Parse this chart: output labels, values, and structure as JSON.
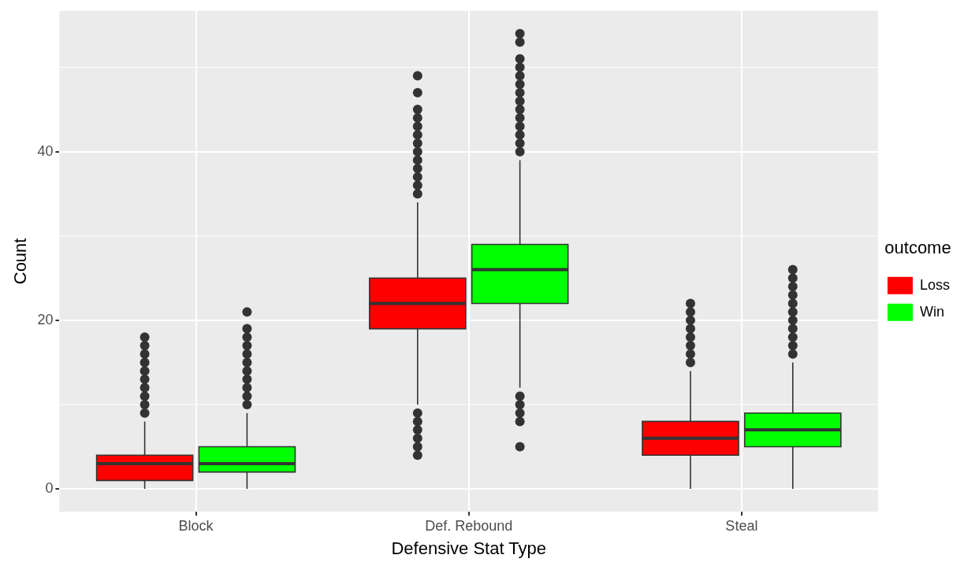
{
  "chart_data": {
    "type": "box",
    "xlabel": "Defensive Stat Type",
    "ylabel": "Count",
    "legend_title": "outcome",
    "legend": "right",
    "grid": true,
    "categories": [
      "Block",
      "Def. Rebound",
      "Steal"
    ],
    "ylim": [
      -2.7,
      56.7
    ],
    "yticks": [
      0,
      20,
      40
    ],
    "series": [
      {
        "name": "Loss",
        "color": "#ff0000",
        "boxes": [
          {
            "low": 0,
            "q1": 1,
            "median": 3,
            "q3": 4,
            "high": 8,
            "outliers": [
              9,
              10,
              11,
              12,
              13,
              14,
              15,
              16,
              17,
              18
            ]
          },
          {
            "low": 10,
            "q1": 19,
            "median": 22,
            "q3": 25,
            "high": 34,
            "outliers": [
              4,
              5,
              6,
              7,
              8,
              9,
              35,
              36,
              37,
              38,
              39,
              40,
              41,
              42,
              43,
              44,
              45,
              47,
              49
            ]
          },
          {
            "low": 0,
            "q1": 4,
            "median": 6,
            "q3": 8,
            "high": 14,
            "outliers": [
              15,
              16,
              17,
              18,
              19,
              20,
              21,
              22
            ]
          }
        ]
      },
      {
        "name": "Win",
        "color": "#00ff00",
        "boxes": [
          {
            "low": 0,
            "q1": 2,
            "median": 3,
            "q3": 5,
            "high": 9,
            "outliers": [
              10,
              11,
              12,
              13,
              14,
              15,
              16,
              17,
              18,
              19,
              21
            ]
          },
          {
            "low": 12,
            "q1": 22,
            "median": 26,
            "q3": 29,
            "high": 39,
            "outliers": [
              5,
              8,
              9,
              10,
              11,
              40,
              41,
              42,
              43,
              44,
              45,
              46,
              47,
              48,
              49,
              50,
              51,
              53,
              54
            ]
          },
          {
            "low": 0,
            "q1": 5,
            "median": 7,
            "q3": 9,
            "high": 15,
            "outliers": [
              16,
              17,
              18,
              19,
              20,
              21,
              22,
              23,
              24,
              25,
              26
            ]
          }
        ]
      }
    ]
  }
}
